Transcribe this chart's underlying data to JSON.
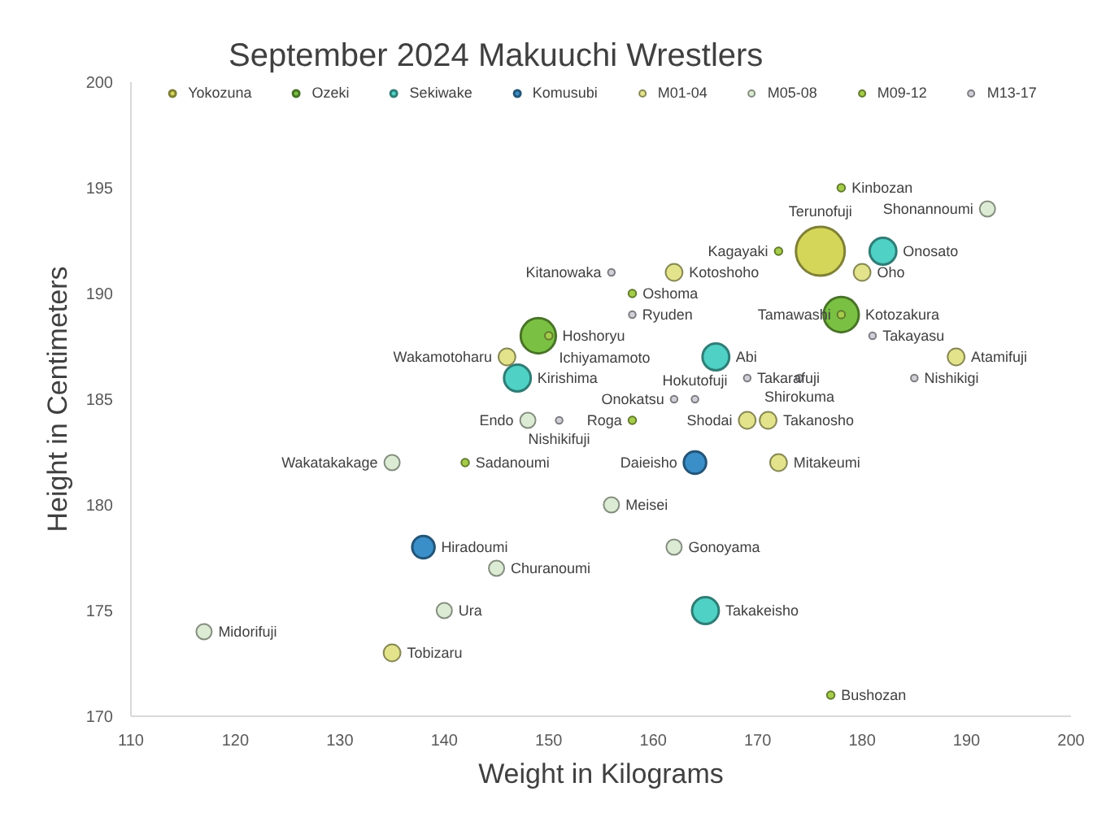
{
  "chart_data": {
    "type": "bubble",
    "title": "September 2024 Makuuchi Wrestlers",
    "xlabel": "Weight in Kilograms",
    "ylabel": "Height in Centimeters",
    "xlim": [
      110,
      200
    ],
    "xticks": [
      110,
      120,
      130,
      140,
      150,
      160,
      170,
      180,
      190,
      200
    ],
    "ylim": [
      170,
      200
    ],
    "yticks": [
      170,
      175,
      180,
      185,
      190,
      195,
      200
    ],
    "grid": false,
    "legend": "top",
    "marker": "circle",
    "series": [
      {
        "name": "Yokozuna",
        "color": "#d4d65a",
        "x": [
          176
        ],
        "values": [
          192
        ],
        "sizes": [
          1
        ],
        "value_labels": [
          "Terunofuji"
        ]
      },
      {
        "name": "Ozeki",
        "color": "#7ac143",
        "x": [
          178,
          149
        ],
        "values": [
          189,
          188
        ],
        "sizes": [
          0.52,
          0.52
        ],
        "value_labels": [
          "Kotozakura",
          "Hoshoryu"
        ]
      },
      {
        "name": "Sekiwake",
        "color": "#4fd1c5",
        "x": [
          182,
          166,
          147,
          165
        ],
        "values": [
          192,
          187,
          186,
          175
        ],
        "sizes": [
          0.3,
          0.3,
          0.3,
          0.3
        ],
        "value_labels": [
          "Onosato",
          "Abi",
          "Kirishima",
          "Takakeisho"
        ]
      },
      {
        "name": "Komusubi",
        "color": "#3b8fc8",
        "x": [
          164,
          138
        ],
        "values": [
          182,
          178
        ],
        "sizes": [
          0.21,
          0.21
        ],
        "value_labels": [
          "Daieisho",
          "Hiradoumi"
        ]
      },
      {
        "name": "M01-04",
        "color": "#e2e38b",
        "x": [
          180,
          162,
          146,
          189,
          169,
          171,
          172,
          135
        ],
        "values": [
          191,
          191,
          187,
          187,
          184,
          184,
          182,
          173
        ],
        "sizes": [
          0.12,
          0.12,
          0.12,
          0.12,
          0.12,
          0.12,
          0.12,
          0.12
        ],
        "value_labels": [
          "Oho",
          "Kotoshoho",
          "Wakamotoharu",
          "Atamifuji",
          "Shodai",
          "Takanosho",
          "Mitakeumi",
          "Tobizaru"
        ]
      },
      {
        "name": "M05-08",
        "color": "#dcecd4",
        "x": [
          192,
          148,
          135,
          156,
          162,
          145,
          140,
          117
        ],
        "values": [
          194,
          184,
          182,
          180,
          178,
          177,
          175,
          174
        ],
        "sizes": [
          0.1,
          0.1,
          0.1,
          0.1,
          0.1,
          0.1,
          0.1,
          0.1
        ],
        "value_labels": [
          "Shonannoumi",
          "Endo",
          "Wakatakakage",
          "Meisei",
          "Gonoyama",
          "Churanoumi",
          "Ura",
          "Midorifuji"
        ]
      },
      {
        "name": "M09-12",
        "color": "#a4cc4a",
        "x": [
          178,
          172,
          158,
          150,
          178,
          158,
          142,
          177
        ],
        "values": [
          195,
          192,
          190,
          188,
          189,
          184,
          182,
          171
        ],
        "sizes": [
          0.025,
          0.025,
          0.025,
          0.025,
          0.025,
          0.025,
          0.025,
          0.025
        ],
        "value_labels": [
          "Kinbozan",
          "Kagayaki",
          "Oshoma",
          "Ichiyamamoto",
          "Tamawashi",
          "Roga",
          "Sadanoumi",
          "Bushozan"
        ]
      },
      {
        "name": "M13-17",
        "color": "#d0d0d8",
        "x": [
          156,
          158,
          181,
          169,
          174,
          185,
          164,
          162,
          151
        ],
        "values": [
          191,
          189,
          188,
          186,
          186,
          186,
          185,
          185,
          184
        ],
        "sizes": [
          0.02,
          0.02,
          0.02,
          0.02,
          0.02,
          0.02,
          0.02,
          0.02,
          0.02
        ],
        "value_labels": [
          "Kitanowaka",
          "Ryuden",
          "Takayasu",
          "Takarafuji",
          "Shirokuma",
          "Nishikigi",
          "Hokutofuji",
          "Onokatsu",
          "Nishikifuji"
        ]
      }
    ]
  }
}
